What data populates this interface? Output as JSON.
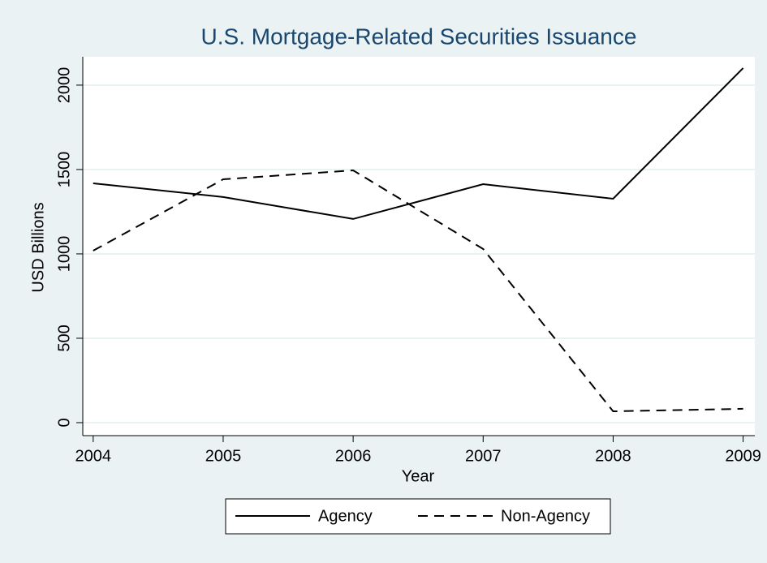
{
  "chart_data": {
    "type": "line",
    "title": "U.S. Mortgage-Related Securities Issuance",
    "x_label": "Year",
    "y_label": "USD Billions",
    "x": [
      2004,
      2005,
      2006,
      2007,
      2008,
      2009
    ],
    "series": [
      {
        "name": "Agency",
        "color": "#000000",
        "style": "solid",
        "values": [
          1418,
          1337,
          1207,
          1413,
          1327,
          2101
        ]
      },
      {
        "name": "Non-Agency",
        "color": "#000000",
        "style": "dashed",
        "values": [
          1019,
          1442,
          1495,
          1029,
          67,
          82
        ]
      }
    ],
    "xlim": [
      2003.92,
      2009.09
    ],
    "xticks": [
      2004,
      2005,
      2006,
      2007,
      2008,
      2009
    ],
    "ylim": [
      -77,
      2168
    ],
    "yticks": [
      0,
      500,
      1000,
      1500,
      2000
    ],
    "grid": true,
    "legend": "bottom"
  }
}
